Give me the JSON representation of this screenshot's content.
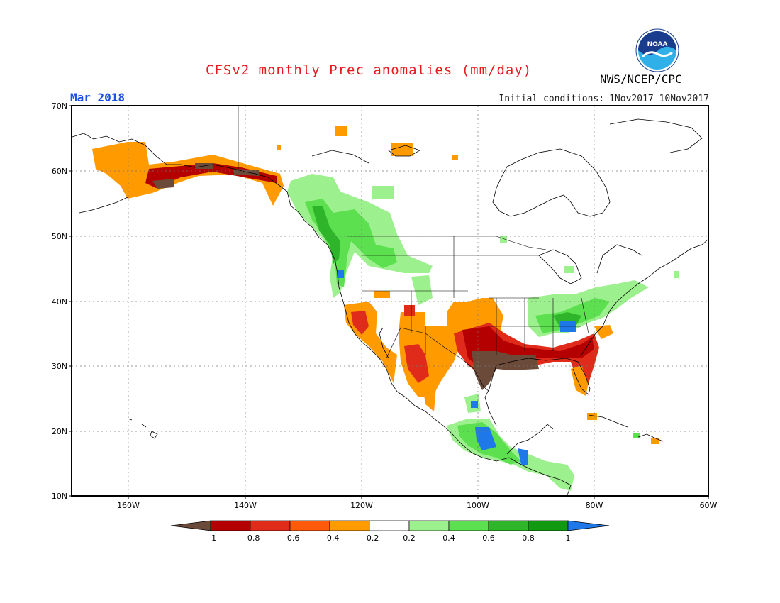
{
  "title": "CFSv2 monthly Prec anomalies (mm/day)",
  "org": "NWS/NCEP/CPC",
  "logo_text": "NOAA",
  "month": "Mar 2018",
  "init_label": "Initial conditions:",
  "init_range": "1Nov2017–10Nov2017",
  "lat_labels": [
    "70N",
    "60N",
    "50N",
    "40N",
    "30N",
    "20N",
    "10N"
  ],
  "lon_labels": [
    "160W",
    "140W",
    "120W",
    "100W",
    "80W",
    "60W"
  ],
  "colorbar": {
    "tick_labels": [
      "−1",
      "−0.8",
      "−0.6",
      "−0.4",
      "−0.2",
      "0.2",
      "0.4",
      "0.6",
      "0.8",
      "1"
    ],
    "colors": [
      "#6b4a3a",
      "#b40000",
      "#e02b1a",
      "#ff5a0a",
      "#ff9a00",
      "#ffffff",
      "#9df08e",
      "#5ce04f",
      "#2fb52a",
      "#119911",
      "#1f78e8"
    ]
  },
  "colors": {
    "brown": "#6b4a3a",
    "dark_red": "#b40000",
    "red": "#e02b1a",
    "orange_red": "#ff5a0a",
    "orange": "#ff9a00",
    "light_green": "#9df08e",
    "green": "#5ce04f",
    "mid_green": "#2fb52a",
    "dark_green": "#119911",
    "blue": "#1f78e8"
  }
}
